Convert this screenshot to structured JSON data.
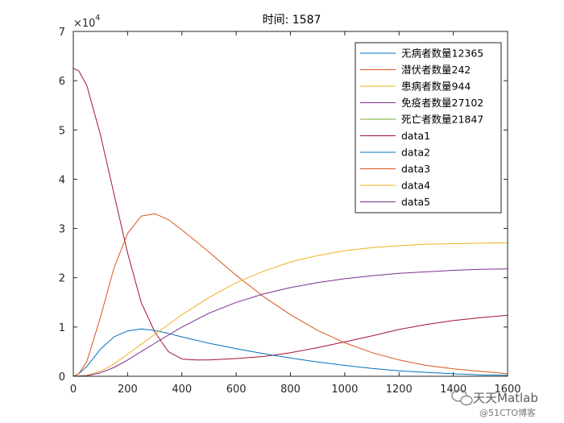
{
  "chart_data": {
    "type": "line",
    "title": "时间: 1587",
    "xlabel": "",
    "ylabel": "",
    "xlim": [
      0,
      1600
    ],
    "ylim": [
      0,
      7
    ],
    "y_exponent_label": "×10",
    "y_exponent": "4",
    "x_ticks": [
      "0",
      "200",
      "400",
      "600",
      "800",
      "1000",
      "1200",
      "1400",
      "1600"
    ],
    "y_ticks": [
      "0",
      "1",
      "2",
      "3",
      "4",
      "5",
      "6",
      "7"
    ],
    "legend_position": "top-right",
    "legend": [
      {
        "label": "无病者数量12365",
        "color": "#0072BD"
      },
      {
        "label": "潜伏者数量242",
        "color": "#D95319"
      },
      {
        "label": "患病者数量944",
        "color": "#EDB120"
      },
      {
        "label": "免疫者数量27102",
        "color": "#7E2F8E"
      },
      {
        "label": "死亡者数量21847",
        "color": "#77AC30"
      },
      {
        "label": "data1",
        "color": "#A2142F"
      },
      {
        "label": "data2",
        "color": "#0072BD"
      },
      {
        "label": "data3",
        "color": "#D95319"
      },
      {
        "label": "data4",
        "color": "#EDB120"
      },
      {
        "label": "data5",
        "color": "#7E2F8E"
      }
    ],
    "series": [
      {
        "color": "#A2142F",
        "x": [
          0,
          20,
          50,
          100,
          150,
          200,
          250,
          300,
          350,
          400,
          450,
          500,
          600,
          700,
          800,
          900,
          1000,
          1100,
          1200,
          1300,
          1400,
          1500,
          1600
        ],
        "y": [
          6.25,
          6.2,
          5.9,
          4.9,
          3.7,
          2.5,
          1.5,
          0.9,
          0.5,
          0.35,
          0.33,
          0.33,
          0.36,
          0.4,
          0.48,
          0.58,
          0.7,
          0.82,
          0.95,
          1.05,
          1.13,
          1.19,
          1.24
        ]
      },
      {
        "color": "#0072BD",
        "x": [
          0,
          20,
          50,
          100,
          150,
          200,
          250,
          300,
          350,
          400,
          500,
          600,
          700,
          800,
          900,
          1000,
          1100,
          1200,
          1300,
          1400,
          1500,
          1600
        ],
        "y": [
          0,
          0.05,
          0.2,
          0.55,
          0.8,
          0.92,
          0.96,
          0.93,
          0.87,
          0.8,
          0.67,
          0.56,
          0.46,
          0.37,
          0.29,
          0.22,
          0.16,
          0.11,
          0.08,
          0.05,
          0.03,
          0.02
        ]
      },
      {
        "color": "#D95319",
        "x": [
          0,
          20,
          50,
          100,
          150,
          200,
          250,
          300,
          350,
          400,
          450,
          500,
          600,
          700,
          800,
          900,
          1000,
          1100,
          1200,
          1300,
          1400,
          1500,
          1600
        ],
        "y": [
          0,
          0.05,
          0.3,
          1.2,
          2.2,
          2.9,
          3.25,
          3.3,
          3.18,
          2.97,
          2.75,
          2.52,
          2.05,
          1.62,
          1.25,
          0.93,
          0.68,
          0.48,
          0.33,
          0.22,
          0.15,
          0.1,
          0.05
        ]
      },
      {
        "color": "#EDB120",
        "x": [
          0,
          50,
          100,
          150,
          200,
          250,
          300,
          400,
          500,
          600,
          700,
          800,
          900,
          1000,
          1100,
          1200,
          1300,
          1400,
          1500,
          1600
        ],
        "y": [
          0,
          0.02,
          0.1,
          0.25,
          0.45,
          0.65,
          0.85,
          1.25,
          1.6,
          1.9,
          2.13,
          2.32,
          2.45,
          2.55,
          2.61,
          2.65,
          2.68,
          2.69,
          2.7,
          2.71
        ]
      },
      {
        "color": "#7E2F8E",
        "x": [
          0,
          50,
          100,
          150,
          200,
          250,
          300,
          400,
          500,
          600,
          700,
          800,
          900,
          1000,
          1100,
          1200,
          1300,
          1400,
          1500,
          1600
        ],
        "y": [
          0,
          0.01,
          0.07,
          0.18,
          0.33,
          0.5,
          0.67,
          1.0,
          1.28,
          1.5,
          1.67,
          1.8,
          1.9,
          1.98,
          2.04,
          2.09,
          2.12,
          2.15,
          2.17,
          2.18
        ]
      }
    ]
  },
  "watermark": {
    "brand": "天天Matlab",
    "source": "@51CTO博客"
  }
}
